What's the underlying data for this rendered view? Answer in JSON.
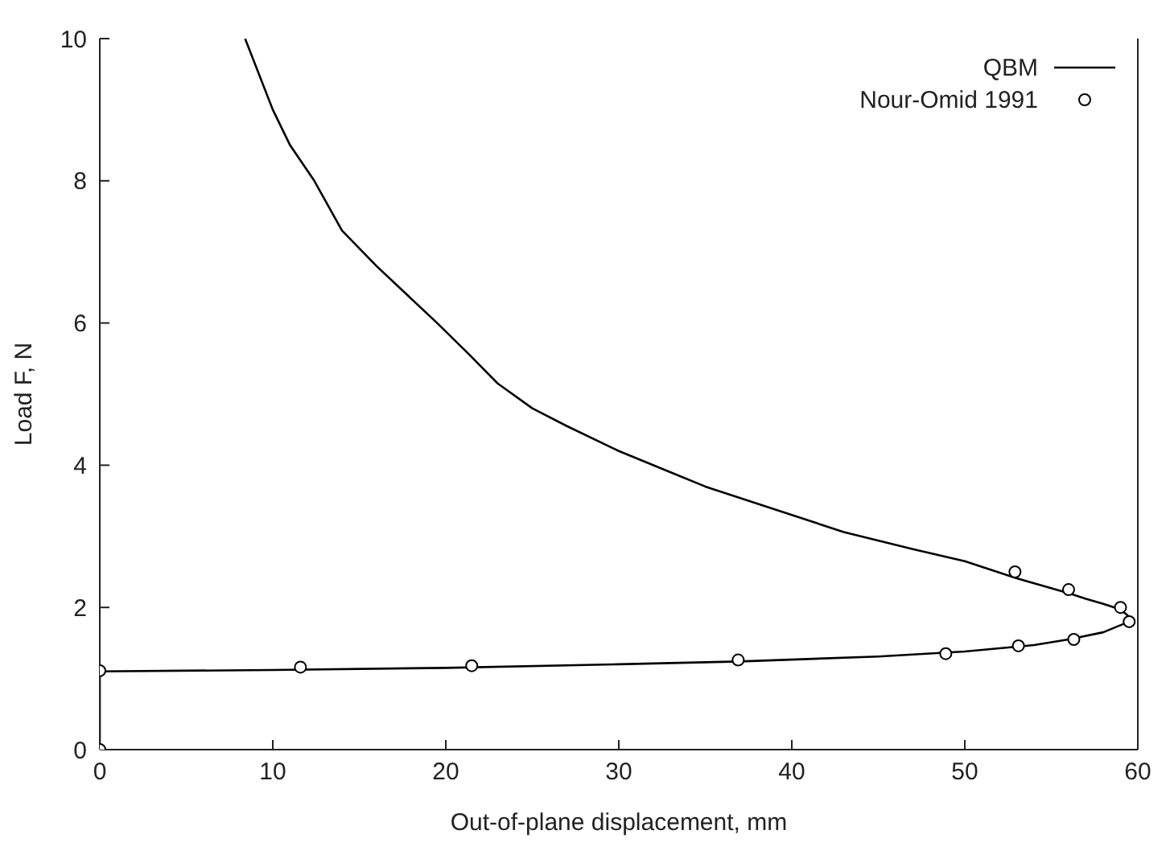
{
  "chart_data": {
    "type": "line",
    "xlabel": "Out-of-plane displacement, mm",
    "ylabel": "Load F, N",
    "xlim": [
      0,
      60
    ],
    "xticks": [
      0,
      10,
      20,
      30,
      40,
      50,
      60
    ],
    "ylim": [
      0,
      10
    ],
    "yticks": [
      0,
      2,
      4,
      6,
      8,
      10
    ],
    "grid": false,
    "legend": "top right",
    "marker": "none",
    "line_style": "solid",
    "series": [
      {
        "name": "QBM",
        "color": "#000000",
        "x": [
          0,
          0,
          10,
          20,
          30,
          37,
          45,
          50,
          54,
          56,
          58,
          59.3,
          59.5,
          59,
          58,
          57,
          56,
          53,
          50,
          47,
          43,
          40,
          35,
          33,
          30,
          27,
          25,
          23,
          21.3,
          19.5,
          16,
          14,
          12.4,
          11,
          10,
          8.4
        ],
        "values": [
          0,
          1.1,
          1.12,
          1.15,
          1.2,
          1.24,
          1.31,
          1.38,
          1.47,
          1.55,
          1.65,
          1.78,
          1.87,
          1.97,
          2.05,
          2.12,
          2.2,
          2.41,
          2.65,
          2.82,
          3.06,
          3.3,
          3.7,
          3.9,
          4.2,
          4.55,
          4.8,
          5.15,
          5.57,
          6,
          6.8,
          7.3,
          8,
          8.5,
          9,
          10
        ]
      },
      {
        "name": "Nour-Omid 1991",
        "type": "scatter",
        "color": "#000000",
        "marker": "circle",
        "x": [
          0,
          0,
          11.6,
          21.5,
          36.9,
          48.9,
          53.1,
          56.3,
          59.5,
          59,
          56,
          52.9
        ],
        "values": [
          0,
          1.11,
          1.16,
          1.18,
          1.26,
          1.35,
          1.46,
          1.55,
          1.8,
          2,
          2.25,
          2.5
        ]
      }
    ]
  }
}
